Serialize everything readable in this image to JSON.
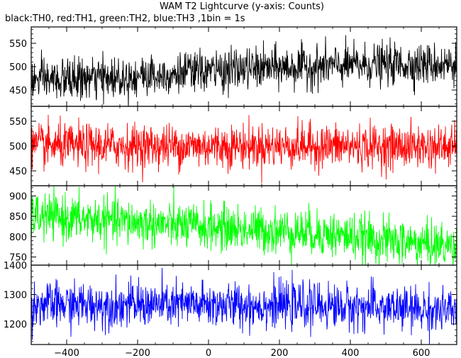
{
  "chart_data": {
    "type": "line",
    "title": "WAM T2 Lightcurve (y-axis: Counts)",
    "subtitle": "black:TH0, red:TH1, green:TH2, blue:TH3 ,1bin = 1s",
    "xlabel": "",
    "ylabel": "",
    "x_range": [
      -500,
      700
    ],
    "x_ticks": [
      -400,
      -200,
      0,
      200,
      400,
      600
    ],
    "x_tick_labels": [
      "−400",
      "−200",
      "0",
      "200",
      "400",
      "600"
    ],
    "bin_seconds": 1,
    "panels": [
      {
        "id": "TH0",
        "color": "#000000",
        "ylim": [
          415,
          585
        ],
        "y_ticks": [
          450,
          500,
          550
        ],
        "y_tick_labels": [
          "450",
          "500",
          "550"
        ],
        "trend": [
          [
            -500,
            470
          ],
          [
            -300,
            475
          ],
          [
            -100,
            485
          ],
          [
            100,
            495
          ],
          [
            300,
            500
          ],
          [
            500,
            505
          ],
          [
            700,
            505
          ]
        ],
        "noise": 22
      },
      {
        "id": "TH1",
        "color": "#ff0000",
        "ylim": [
          420,
          580
        ],
        "y_ticks": [
          450,
          500,
          550
        ],
        "y_tick_labels": [
          "450",
          "500",
          "550"
        ],
        "trend": [
          [
            -500,
            500
          ],
          [
            -100,
            500
          ],
          [
            300,
            500
          ],
          [
            700,
            498
          ]
        ],
        "noise": 22
      },
      {
        "id": "TH2",
        "color": "#00ff00",
        "ylim": [
          730,
          925
        ],
        "y_ticks": [
          750,
          800,
          850,
          900
        ],
        "y_tick_labels": [
          "750",
          "800",
          "850",
          "900"
        ],
        "trend": [
          [
            -500,
            850
          ],
          [
            -300,
            840
          ],
          [
            -100,
            828
          ],
          [
            100,
            818
          ],
          [
            300,
            810
          ],
          [
            500,
            790
          ],
          [
            700,
            775
          ]
        ],
        "noise": 28
      },
      {
        "id": "TH3",
        "color": "#0000ff",
        "ylim": [
          1130,
          1400
        ],
        "y_ticks": [
          1200,
          1300,
          1400
        ],
        "y_tick_labels": [
          "1200",
          "1300",
          "1400"
        ],
        "trend": [
          [
            -500,
            1265
          ],
          [
            -100,
            1265
          ],
          [
            300,
            1262
          ],
          [
            500,
            1255
          ],
          [
            700,
            1240
          ]
        ],
        "noise": 38
      }
    ]
  }
}
